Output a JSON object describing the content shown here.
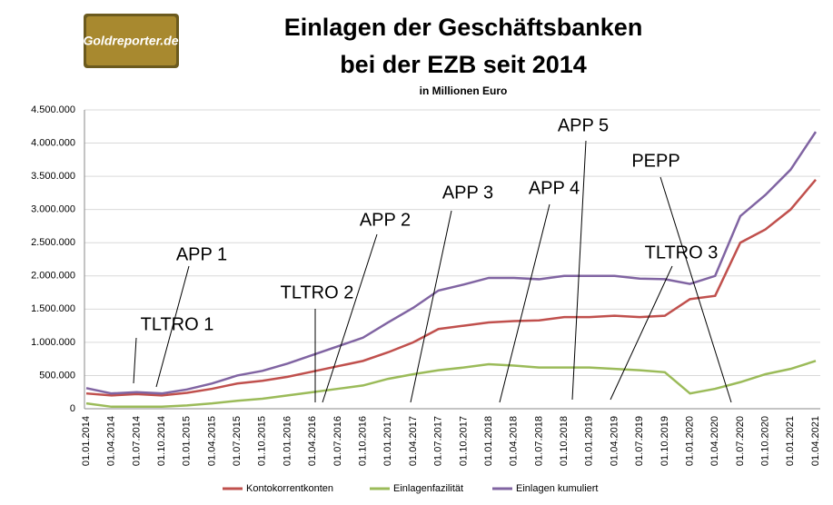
{
  "logo": "Goldreporter.de",
  "chart_data": {
    "type": "line",
    "title": [
      "Einlagen der Geschäftsbanken",
      "bei der EZB seit 2014"
    ],
    "subtitle": "in Millionen Euro",
    "categories": [
      "01.01.2014",
      "01.04.2014",
      "01.07.2014",
      "01.10.2014",
      "01.01.2015",
      "01.04.2015",
      "01.07.2015",
      "01.10.2015",
      "01.01.2016",
      "01.04.2016",
      "01.07.2016",
      "01.10.2016",
      "01.01.2017",
      "01.04.2017",
      "01.07.2017",
      "01.10.2017",
      "01.01.2018",
      "01.04.2018",
      "01.07.2018",
      "01.10.2018",
      "01.01.2019",
      "01.04.2019",
      "01.07.2019",
      "01.10.2019",
      "01.01.2020",
      "01.04.2020",
      "01.07.2020",
      "01.10.2020",
      "01.01.2021",
      "01.04.2021"
    ],
    "series": [
      {
        "name": "Kontokorrentkonten",
        "color": "#c0504d",
        "values": [
          230000,
          200000,
          220000,
          200000,
          240000,
          300000,
          380000,
          420000,
          480000,
          560000,
          640000,
          720000,
          850000,
          1000000,
          1200000,
          1250000,
          1300000,
          1320000,
          1330000,
          1380000,
          1380000,
          1400000,
          1380000,
          1400000,
          1650000,
          1700000,
          2500000,
          2700000,
          3000000,
          3450000
        ]
      },
      {
        "name": "Einlagenfazilität",
        "color": "#9bbb59",
        "values": [
          80000,
          30000,
          30000,
          30000,
          50000,
          80000,
          120000,
          150000,
          200000,
          250000,
          300000,
          350000,
          450000,
          520000,
          580000,
          620000,
          670000,
          650000,
          620000,
          620000,
          620000,
          600000,
          580000,
          550000,
          230000,
          300000,
          400000,
          520000,
          600000,
          720000
        ]
      },
      {
        "name": "Einlagen kumuliert",
        "color": "#8064a2",
        "values": [
          310000,
          230000,
          250000,
          230000,
          290000,
          380000,
          500000,
          570000,
          680000,
          810000,
          940000,
          1070000,
          1300000,
          1520000,
          1780000,
          1870000,
          1970000,
          1970000,
          1950000,
          2000000,
          2000000,
          2000000,
          1960000,
          1950000,
          1880000,
          2000000,
          2900000,
          3220000,
          3600000,
          4170000
        ]
      }
    ],
    "ylim": [
      0,
      4500000
    ],
    "yticks": [
      0,
      {
        "value": 500000,
        "label": "500.000"
      },
      {
        "value": 1000000,
        "label": "1.000.000"
      },
      {
        "value": 1500000,
        "label": "1.500.000"
      },
      {
        "value": 2000000,
        "label": "2.000.000"
      },
      {
        "value": 2500000,
        "label": "2.500.000"
      },
      {
        "value": 3000000,
        "label": "3.000.000"
      },
      {
        "value": 3500000,
        "label": "3.500.000"
      },
      {
        "value": 4000000,
        "label": "4.000.000"
      },
      {
        "value": 4500000,
        "label": "4.500.000"
      }
    ],
    "grid": true,
    "legend": "bottom",
    "annotations": [
      "TLTRO 1",
      "APP 1",
      "TLTRO 2",
      "APP 2",
      "APP 3",
      "APP 4",
      "APP 5",
      "PEPP",
      "TLTRO 3"
    ]
  }
}
